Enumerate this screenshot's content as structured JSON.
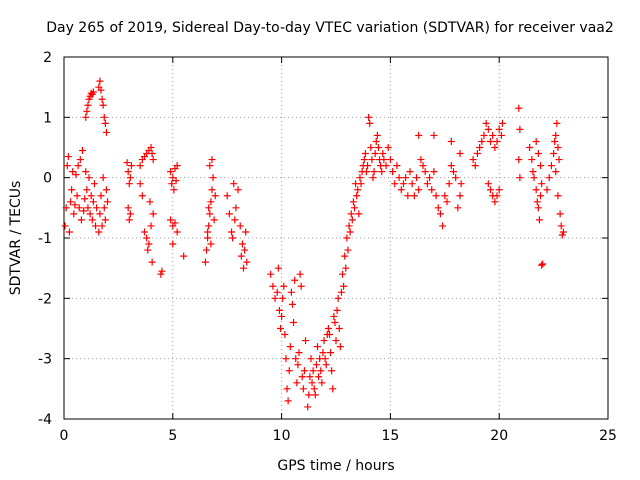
{
  "chart_data": {
    "type": "scatter",
    "title": "Day 265 of 2019, Sidereal Day-to-day VTEC variation (SDTVAR) for receiver vaa2",
    "xlabel": "GPS time / hours",
    "ylabel": "SDTVAR / TECUs",
    "xlim": [
      0,
      25
    ],
    "ylim": [
      -4,
      2
    ],
    "xticks": [
      0,
      5,
      10,
      15,
      20,
      25
    ],
    "yticks": [
      -4,
      -3,
      -2,
      -1,
      0,
      1,
      2
    ],
    "grid": true,
    "marker": "plus",
    "series": [
      {
        "name": "vaa2",
        "color": "#ff0000",
        "points": [
          [
            0.05,
            -0.8
          ],
          [
            0.1,
            -0.5
          ],
          [
            0.15,
            0.2
          ],
          [
            0.2,
            0.35
          ],
          [
            0.25,
            -0.9
          ],
          [
            0.3,
            -0.4
          ],
          [
            0.35,
            -0.2
          ],
          [
            0.4,
            0.1
          ],
          [
            0.45,
            -0.6
          ],
          [
            0.5,
            -0.45
          ],
          [
            0.55,
            0.05
          ],
          [
            0.6,
            -0.3
          ],
          [
            0.65,
            0.2
          ],
          [
            0.7,
            -0.5
          ],
          [
            0.75,
            0.3
          ],
          [
            0.8,
            -0.7
          ],
          [
            0.85,
            0.45
          ],
          [
            0.9,
            -0.55
          ],
          [
            0.95,
            -0.35
          ],
          [
            1.0,
            1.0
          ],
          [
            1.05,
            1.1
          ],
          [
            1.1,
            1.2
          ],
          [
            1.15,
            1.3
          ],
          [
            1.2,
            1.35
          ],
          [
            1.25,
            1.4
          ],
          [
            1.3,
            1.38
          ],
          [
            1.35,
            1.42
          ],
          [
            1.0,
            0.1
          ],
          [
            1.05,
            -0.2
          ],
          [
            1.1,
            -0.5
          ],
          [
            1.15,
            0.0
          ],
          [
            1.2,
            -0.6
          ],
          [
            1.25,
            -0.3
          ],
          [
            1.3,
            -0.7
          ],
          [
            1.35,
            -0.4
          ],
          [
            1.4,
            -0.1
          ],
          [
            1.45,
            -0.8
          ],
          [
            1.5,
            -0.5
          ],
          [
            1.6,
            1.5
          ],
          [
            1.65,
            1.6
          ],
          [
            1.7,
            1.45
          ],
          [
            1.75,
            1.3
          ],
          [
            1.8,
            1.2
          ],
          [
            1.85,
            1.0
          ],
          [
            1.9,
            0.9
          ],
          [
            1.95,
            0.75
          ],
          [
            1.6,
            -0.9
          ],
          [
            1.65,
            -0.6
          ],
          [
            1.7,
            -0.3
          ],
          [
            1.75,
            -0.8
          ],
          [
            1.8,
            0.0
          ],
          [
            1.85,
            -0.5
          ],
          [
            1.9,
            -0.7
          ],
          [
            1.95,
            -0.2
          ],
          [
            2.0,
            -0.4
          ],
          [
            2.9,
            0.25
          ],
          [
            2.95,
            0.1
          ],
          [
            3.0,
            -0.1
          ],
          [
            3.05,
            0.0
          ],
          [
            3.1,
            0.2
          ],
          [
            2.95,
            -0.5
          ],
          [
            3.0,
            -0.7
          ],
          [
            3.05,
            -0.6
          ],
          [
            3.5,
            0.2
          ],
          [
            3.6,
            0.3
          ],
          [
            3.7,
            0.35
          ],
          [
            3.8,
            0.4
          ],
          [
            3.9,
            0.45
          ],
          [
            4.0,
            0.5
          ],
          [
            4.05,
            0.4
          ],
          [
            4.1,
            0.3
          ],
          [
            3.5,
            -0.1
          ],
          [
            3.6,
            -0.3
          ],
          [
            3.7,
            -0.9
          ],
          [
            3.8,
            -1.0
          ],
          [
            3.85,
            -1.2
          ],
          [
            3.9,
            -1.1
          ],
          [
            3.95,
            -0.4
          ],
          [
            4.0,
            -0.8
          ],
          [
            4.05,
            -1.4
          ],
          [
            4.1,
            -0.6
          ],
          [
            4.5,
            -1.55
          ],
          [
            4.45,
            -1.6
          ],
          [
            4.9,
            0.1
          ],
          [
            4.95,
            -0.1
          ],
          [
            5.0,
            0.0
          ],
          [
            5.05,
            -0.2
          ],
          [
            5.1,
            0.15
          ],
          [
            5.15,
            -0.05
          ],
          [
            5.2,
            0.2
          ],
          [
            4.9,
            -0.7
          ],
          [
            5.0,
            -0.8
          ],
          [
            5.1,
            -0.75
          ],
          [
            5.2,
            -0.9
          ],
          [
            5.0,
            -1.1
          ],
          [
            5.5,
            -1.3
          ],
          [
            6.5,
            -1.4
          ],
          [
            6.55,
            -1.2
          ],
          [
            6.6,
            -1.0
          ],
          [
            6.65,
            -0.8
          ],
          [
            6.7,
            -0.6
          ],
          [
            6.75,
            -0.4
          ],
          [
            6.8,
            -0.2
          ],
          [
            6.85,
            0.0
          ],
          [
            6.7,
            0.2
          ],
          [
            6.8,
            0.3
          ],
          [
            6.6,
            -0.9
          ],
          [
            6.65,
            -0.5
          ],
          [
            6.75,
            -1.1
          ],
          [
            6.9,
            -0.7
          ],
          [
            6.95,
            -0.3
          ],
          [
            7.5,
            -0.3
          ],
          [
            7.6,
            -0.6
          ],
          [
            7.7,
            -0.9
          ],
          [
            7.75,
            -1.0
          ],
          [
            7.8,
            -0.1
          ],
          [
            7.85,
            -0.7
          ],
          [
            7.9,
            -0.5
          ],
          [
            8.0,
            -0.2
          ],
          [
            8.1,
            -0.8
          ],
          [
            8.15,
            -1.3
          ],
          [
            8.2,
            -1.1
          ],
          [
            8.25,
            -1.5
          ],
          [
            8.3,
            -1.2
          ],
          [
            8.35,
            -0.9
          ],
          [
            8.4,
            -1.4
          ],
          [
            9.5,
            -1.6
          ],
          [
            9.6,
            -1.8
          ],
          [
            9.7,
            -2.0
          ],
          [
            9.8,
            -1.9
          ],
          [
            9.85,
            -1.5
          ],
          [
            9.9,
            -2.2
          ],
          [
            9.95,
            -2.5
          ],
          [
            10.0,
            -2.3
          ],
          [
            10.05,
            -2.0
          ],
          [
            10.1,
            -1.8
          ],
          [
            10.15,
            -2.6
          ],
          [
            10.2,
            -3.0
          ],
          [
            10.25,
            -3.5
          ],
          [
            10.3,
            -3.7
          ],
          [
            10.35,
            -3.2
          ],
          [
            10.4,
            -2.8
          ],
          [
            10.45,
            -1.9
          ],
          [
            10.5,
            -2.1
          ],
          [
            10.55,
            -2.4
          ],
          [
            10.6,
            -1.7
          ],
          [
            10.65,
            -3.0
          ],
          [
            10.7,
            -3.4
          ],
          [
            10.75,
            -3.1
          ],
          [
            10.8,
            -2.9
          ],
          [
            10.85,
            -1.6
          ],
          [
            10.9,
            -1.8
          ],
          [
            10.95,
            -3.3
          ],
          [
            11.0,
            -3.5
          ],
          [
            11.05,
            -3.2
          ],
          [
            11.1,
            -2.7
          ],
          [
            11.2,
            -3.8
          ],
          [
            11.25,
            -3.6
          ],
          [
            11.3,
            -3.3
          ],
          [
            11.35,
            -3.0
          ],
          [
            11.4,
            -3.4
          ],
          [
            11.45,
            -3.2
          ],
          [
            11.5,
            -3.5
          ],
          [
            11.55,
            -3.6
          ],
          [
            11.6,
            -3.1
          ],
          [
            11.65,
            -2.8
          ],
          [
            11.7,
            -3.3
          ],
          [
            11.75,
            -3.0
          ],
          [
            11.8,
            -3.2
          ],
          [
            11.85,
            -3.4
          ],
          [
            11.9,
            -2.9
          ],
          [
            11.95,
            -2.7
          ],
          [
            12.0,
            -3.0
          ],
          [
            12.05,
            -3.1
          ],
          [
            12.1,
            -2.6
          ],
          [
            12.15,
            -2.5
          ],
          [
            12.2,
            -2.6
          ],
          [
            12.25,
            -2.9
          ],
          [
            12.3,
            -3.2
          ],
          [
            12.35,
            -3.5
          ],
          [
            12.4,
            -2.3
          ],
          [
            12.45,
            -2.4
          ],
          [
            12.5,
            -2.7
          ],
          [
            12.55,
            -2.2
          ],
          [
            12.6,
            -2.0
          ],
          [
            12.65,
            -2.5
          ],
          [
            12.7,
            -2.8
          ],
          [
            12.75,
            -1.9
          ],
          [
            12.8,
            -1.6
          ],
          [
            12.85,
            -1.8
          ],
          [
            12.9,
            -1.3
          ],
          [
            12.95,
            -1.5
          ],
          [
            13.0,
            -1.0
          ],
          [
            13.05,
            -1.2
          ],
          [
            13.1,
            -0.8
          ],
          [
            13.15,
            -0.9
          ],
          [
            13.2,
            -0.6
          ],
          [
            13.25,
            -0.7
          ],
          [
            13.3,
            -0.4
          ],
          [
            13.35,
            -0.5
          ],
          [
            13.4,
            -0.1
          ],
          [
            13.45,
            -0.3
          ],
          [
            13.5,
            -0.2
          ],
          [
            13.55,
            -0.6
          ],
          [
            13.6,
            0.0
          ],
          [
            13.65,
            -0.1
          ],
          [
            13.7,
            0.1
          ],
          [
            13.75,
            0.2
          ],
          [
            13.8,
            0.3
          ],
          [
            13.85,
            0.4
          ],
          [
            13.9,
            0.1
          ],
          [
            13.95,
            0.2
          ],
          [
            14.0,
            1.0
          ],
          [
            14.05,
            0.9
          ],
          [
            14.1,
            0.5
          ],
          [
            14.15,
            0.3
          ],
          [
            14.2,
            0.0
          ],
          [
            14.25,
            0.1
          ],
          [
            14.3,
            0.4
          ],
          [
            14.35,
            0.6
          ],
          [
            14.4,
            0.7
          ],
          [
            14.45,
            0.5
          ],
          [
            14.5,
            0.3
          ],
          [
            14.55,
            0.2
          ],
          [
            14.6,
            0.1
          ],
          [
            14.65,
            0.4
          ],
          [
            14.7,
            0.3
          ],
          [
            14.8,
            0.2
          ],
          [
            14.9,
            0.5
          ],
          [
            15.0,
            0.3
          ],
          [
            15.1,
            0.1
          ],
          [
            15.2,
            -0.1
          ],
          [
            15.3,
            0.2
          ],
          [
            15.4,
            0.0
          ],
          [
            15.5,
            -0.2
          ],
          [
            15.6,
            -0.1
          ],
          [
            15.7,
            0.0
          ],
          [
            15.8,
            -0.3
          ],
          [
            15.9,
            0.1
          ],
          [
            16.0,
            -0.1
          ],
          [
            16.1,
            -0.3
          ],
          [
            16.2,
            0.0
          ],
          [
            16.3,
            -0.2
          ],
          [
            16.4,
            0.3
          ],
          [
            16.5,
            0.2
          ],
          [
            16.6,
            0.1
          ],
          [
            16.7,
            -0.1
          ],
          [
            16.8,
            0.0
          ],
          [
            16.9,
            -0.2
          ],
          [
            17.0,
            0.1
          ],
          [
            17.1,
            -0.3
          ],
          [
            17.2,
            -0.5
          ],
          [
            17.3,
            -0.6
          ],
          [
            17.4,
            -0.8
          ],
          [
            17.5,
            -0.3
          ],
          [
            17.6,
            -0.4
          ],
          [
            17.7,
            -0.1
          ],
          [
            17.8,
            0.2
          ],
          [
            17.9,
            0.1
          ],
          [
            18.0,
            0.0
          ],
          [
            18.1,
            -0.5
          ],
          [
            18.2,
            -0.3
          ],
          [
            18.25,
            -0.1
          ],
          [
            16.3,
            0.7
          ],
          [
            17.0,
            0.7
          ],
          [
            17.8,
            0.6
          ],
          [
            18.2,
            0.4
          ],
          [
            18.8,
            0.3
          ],
          [
            18.9,
            0.2
          ],
          [
            19.0,
            0.4
          ],
          [
            19.1,
            0.5
          ],
          [
            19.2,
            0.6
          ],
          [
            19.3,
            0.7
          ],
          [
            19.4,
            0.9
          ],
          [
            19.5,
            0.8
          ],
          [
            19.6,
            0.6
          ],
          [
            19.7,
            0.7
          ],
          [
            19.8,
            0.5
          ],
          [
            19.9,
            0.6
          ],
          [
            20.0,
            0.8
          ],
          [
            20.1,
            0.7
          ],
          [
            20.15,
            0.9
          ],
          [
            19.5,
            -0.1
          ],
          [
            19.6,
            -0.2
          ],
          [
            19.7,
            -0.3
          ],
          [
            19.8,
            -0.4
          ],
          [
            19.9,
            -0.3
          ],
          [
            20.0,
            -0.2
          ],
          [
            20.9,
            1.15
          ],
          [
            20.95,
            0.8
          ],
          [
            20.9,
            0.3
          ],
          [
            20.95,
            0.0
          ],
          [
            21.4,
            0.5
          ],
          [
            21.5,
            0.3
          ],
          [
            21.55,
            0.1
          ],
          [
            21.6,
            0.0
          ],
          [
            21.7,
            -0.2
          ],
          [
            21.75,
            -0.4
          ],
          [
            21.8,
            -0.5
          ],
          [
            21.85,
            -0.7
          ],
          [
            21.9,
            -0.3
          ],
          [
            21.95,
            -0.1
          ],
          [
            21.7,
            0.6
          ],
          [
            21.8,
            0.4
          ],
          [
            21.9,
            0.2
          ],
          [
            22.0,
            -1.43
          ],
          [
            21.95,
            -1.45
          ],
          [
            22.2,
            -0.2
          ],
          [
            22.3,
            0.0
          ],
          [
            22.4,
            0.2
          ],
          [
            22.5,
            0.4
          ],
          [
            22.55,
            0.6
          ],
          [
            22.6,
            0.7
          ],
          [
            22.65,
            0.9
          ],
          [
            22.7,
            0.5
          ],
          [
            22.75,
            0.3
          ],
          [
            22.8,
            -0.6
          ],
          [
            22.85,
            -0.8
          ],
          [
            22.9,
            -0.95
          ],
          [
            22.95,
            -0.9
          ],
          [
            22.6,
            0.1
          ],
          [
            22.7,
            -0.3
          ]
        ]
      }
    ]
  }
}
